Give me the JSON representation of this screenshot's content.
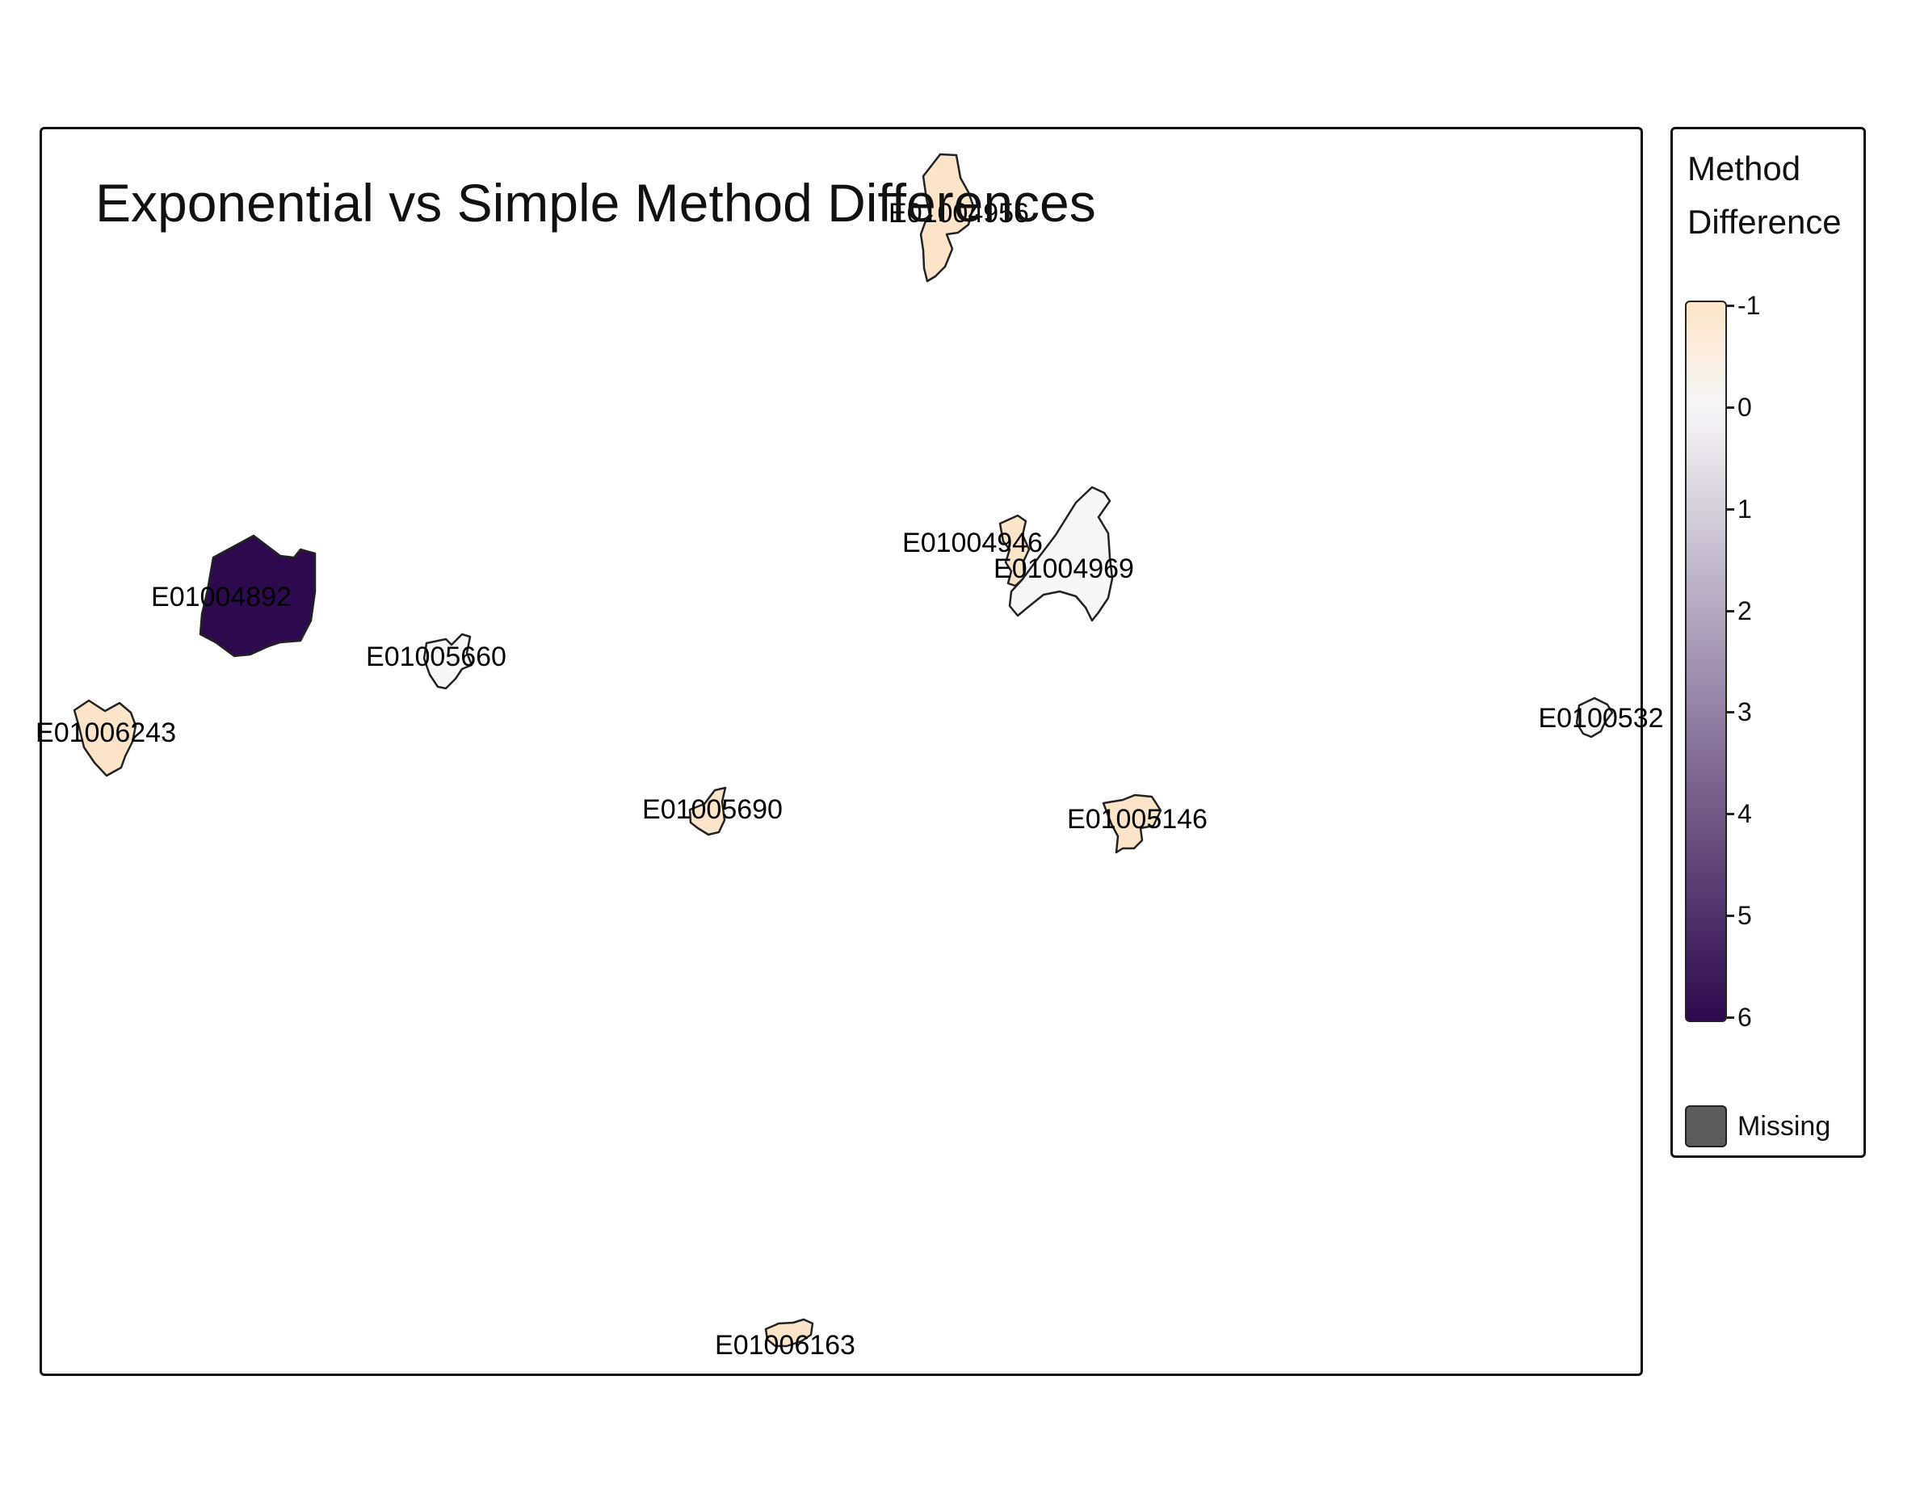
{
  "map": {
    "title": "Exponential vs Simple Method Differences",
    "regions": [
      {
        "id": "E01004956",
        "value": -1
      },
      {
        "id": "E01004892",
        "value": 6
      },
      {
        "id": "E01004946",
        "value": -1
      },
      {
        "id": "E01004969",
        "value": 0
      },
      {
        "id": "E01005660",
        "value": 0
      },
      {
        "id": "E01006243",
        "value": -1
      },
      {
        "id": "E01005690",
        "value": -1
      },
      {
        "id": "E01005146",
        "value": -1
      },
      {
        "id": "E0100532",
        "value": 0
      },
      {
        "id": "E01006163",
        "value": -1
      }
    ]
  },
  "legend": {
    "title_line1": "Method",
    "title_line2": "Difference",
    "ticks": [
      "-1",
      "0",
      "1",
      "2",
      "3",
      "4",
      "5",
      "6"
    ],
    "scale_min": -1,
    "scale_max": 6,
    "colors": {
      "low": "#fbe4c8",
      "mid": "#f7f7f7",
      "high": "#2d0a4e",
      "missing": "#5c5c5c"
    },
    "missing_label": "Missing"
  }
}
